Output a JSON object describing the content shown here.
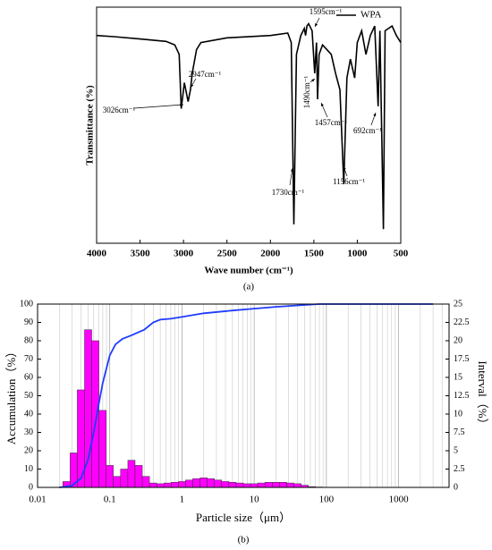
{
  "chart_data": [
    {
      "type": "line",
      "xlabel": "Wave number (cm⁻¹)",
      "ylabel": "Transmittance (%)",
      "caption": "(a)",
      "xlim": [
        4000,
        500
      ],
      "xticks": [
        4000,
        3500,
        3000,
        2500,
        2000,
        1500,
        1000,
        500
      ],
      "ylim": [
        0,
        100
      ],
      "legend": "upper right",
      "x": [
        4000,
        3800,
        3500,
        3200,
        3100,
        3050,
        3026,
        2990,
        2947,
        2920,
        2900,
        2850,
        2800,
        2500,
        2000,
        1800,
        1760,
        1730,
        1700,
        1650,
        1610,
        1595,
        1580,
        1560,
        1520,
        1490,
        1470,
        1457,
        1440,
        1400,
        1300,
        1250,
        1200,
        1156,
        1120,
        1080,
        1030,
        1000,
        950,
        900,
        850,
        800,
        760,
        740,
        700,
        680,
        600,
        550,
        500
      ],
      "series": [
        {
          "name": "WPA",
          "color": "#000000",
          "values": [
            88,
            87.5,
            86.5,
            85.5,
            84,
            80,
            57,
            68,
            60,
            65,
            72,
            82,
            85,
            87,
            88,
            89,
            85,
            8,
            80,
            88,
            91,
            88,
            92,
            93,
            90,
            72,
            85,
            61,
            80,
            84,
            80,
            72,
            65,
            25,
            70,
            78,
            70,
            85,
            90,
            80,
            88,
            92,
            58,
            90,
            6,
            90,
            92,
            88,
            85
          ]
        }
      ],
      "annotations": [
        {
          "text": "3026cm⁻¹",
          "x": 3026
        },
        {
          "text": "2947cm⁻¹",
          "x": 2947
        },
        {
          "text": "1595cm⁻¹",
          "x": 1595
        },
        {
          "text": "1490cm⁻¹",
          "x": 1490
        },
        {
          "text": "1457cm⁻¹",
          "x": 1457
        },
        {
          "text": "1156cm⁻¹",
          "x": 1156
        },
        {
          "text": "692cm⁻¹",
          "x": 692
        },
        {
          "text": "1730cm⁻¹",
          "x": 1730
        }
      ]
    },
    {
      "type": "histogram",
      "xlabel": "Particle size（μm）",
      "ylabel": "Accumulation（%）",
      "y2label": "Interval（%）",
      "caption": "(b)",
      "xscale": "log",
      "xlim": [
        0.01,
        5000
      ],
      "xticks": [
        0.01,
        0.1,
        1,
        10,
        100,
        1000
      ],
      "grid": true,
      "ylim": [
        0,
        100
      ],
      "yticks": [
        0,
        10,
        20,
        30,
        40,
        50,
        60,
        70,
        80,
        90,
        100
      ],
      "y2lim": [
        0,
        25
      ],
      "y2ticks": [
        0,
        2.5,
        5,
        7.5,
        10,
        12.5,
        15,
        17.5,
        20,
        22.5,
        25
      ],
      "bins": [
        0.0224,
        0.0282,
        0.0355,
        0.0447,
        0.0562,
        0.0708,
        0.0891,
        0.112,
        0.141,
        0.178,
        0.224,
        0.282,
        0.355,
        0.447,
        0.562,
        0.708,
        0.891,
        1.12,
        1.41,
        1.78,
        2.24,
        2.82,
        3.55,
        4.47,
        5.62,
        7.08,
        8.91,
        11.2,
        14.1,
        17.8,
        22.4,
        28.2,
        35.5,
        44.7,
        56.2,
        70.8,
        89.1
      ],
      "values": [
        0.8,
        4.7,
        13.3,
        21.5,
        20,
        10.5,
        3,
        1.5,
        2.5,
        3.7,
        3,
        1.5,
        0.6,
        0.5,
        0.6,
        0.7,
        0.8,
        1,
        1.2,
        1.3,
        1.2,
        1,
        0.8,
        0.7,
        0.6,
        0.5,
        0.5,
        0.6,
        0.7,
        0.7,
        0.7,
        0.6,
        0.5,
        0.3,
        0.1,
        0.05
      ],
      "color": "#ff00ff",
      "axis": "y2",
      "curve": {
        "color": "#1e3cff",
        "x": [
          0.02,
          0.03,
          0.04,
          0.05,
          0.06,
          0.07,
          0.08,
          0.1,
          0.12,
          0.15,
          0.2,
          0.3,
          0.4,
          0.5,
          0.7,
          1,
          2,
          5,
          10,
          20,
          50,
          80,
          100,
          1000,
          3000
        ],
        "values": [
          0,
          1,
          5,
          15,
          30,
          45,
          57,
          72,
          78,
          81,
          83,
          86,
          90,
          91.5,
          92,
          93,
          95,
          96.5,
          97.5,
          98.5,
          99.5,
          100,
          100,
          100,
          100
        ]
      }
    }
  ]
}
